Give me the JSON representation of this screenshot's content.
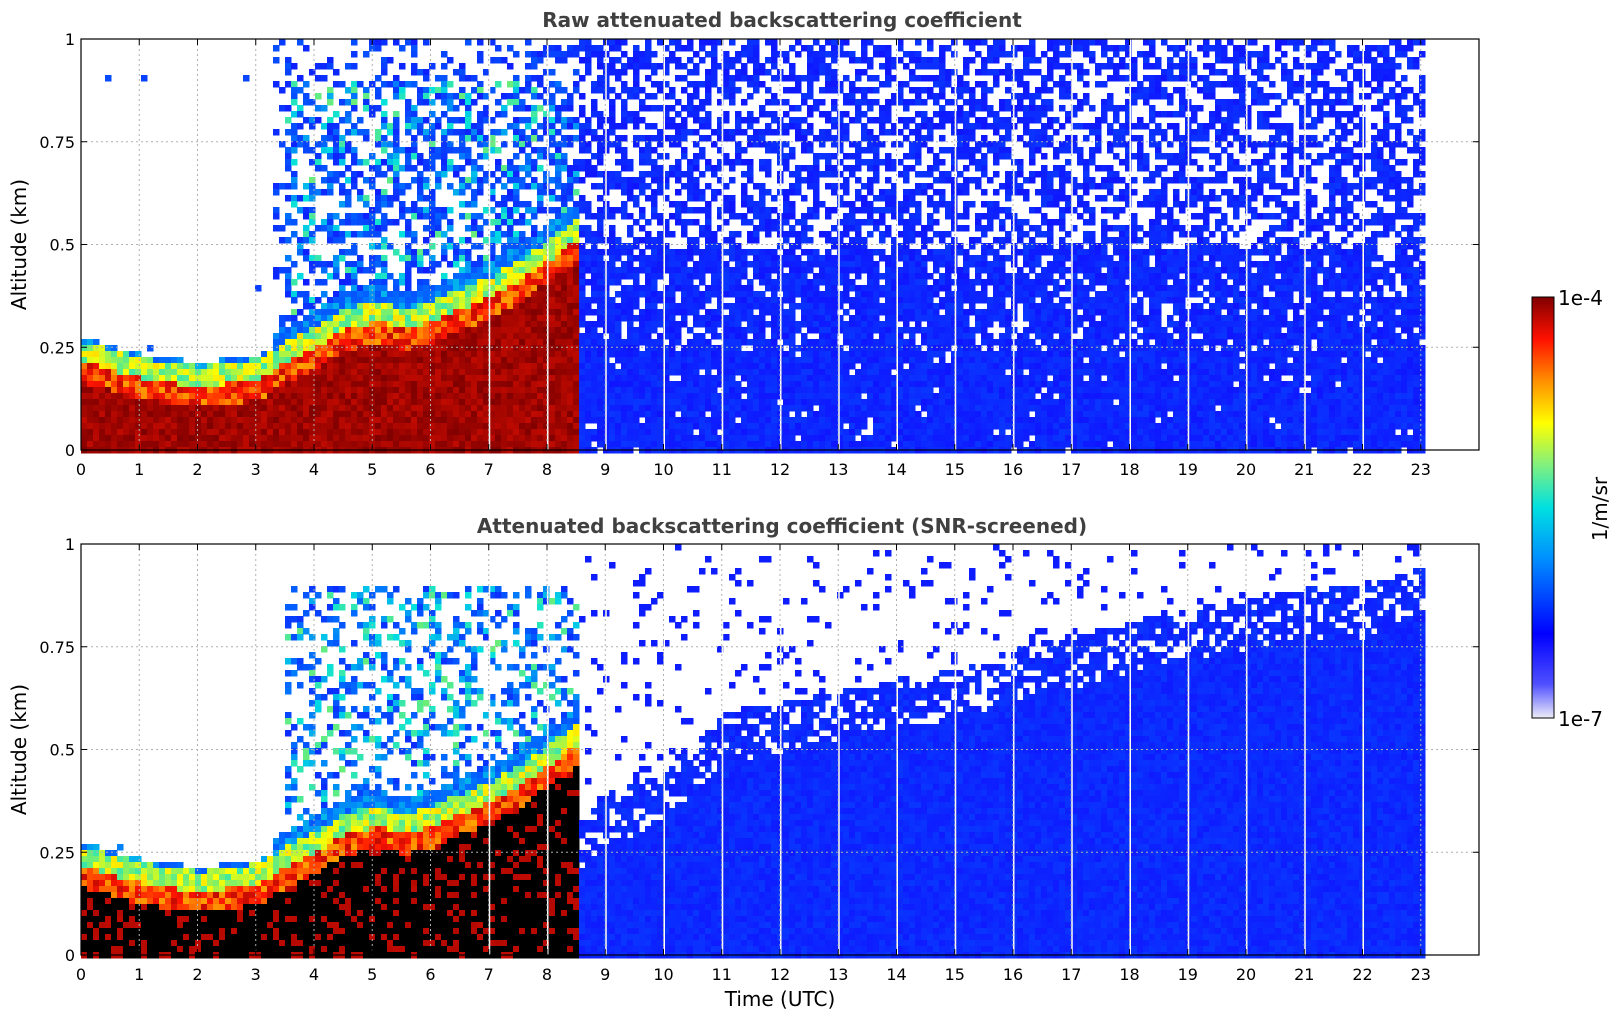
{
  "chart_data": [
    {
      "type": "heatmap",
      "title": "Raw attenuated backscattering coefficient",
      "xlabel": "",
      "ylabel": "Altitude (km)",
      "xlim": [
        0,
        24
      ],
      "ylim": [
        0,
        1
      ],
      "xticks": [
        "0",
        "1",
        "2",
        "3",
        "4",
        "5",
        "6",
        "7",
        "8",
        "9",
        "10",
        "11",
        "12",
        "13",
        "14",
        "15",
        "16",
        "17",
        "18",
        "19",
        "20",
        "21",
        "22",
        "23"
      ],
      "yticks": [
        "0",
        "0.25",
        "0.5",
        "0.75",
        "1"
      ],
      "grid": true,
      "data_end_hour": 23,
      "layer_top_km": [
        [
          0,
          0.22
        ],
        [
          0.5,
          0.2
        ],
        [
          1,
          0.18
        ],
        [
          2,
          0.16
        ],
        [
          3,
          0.18
        ],
        [
          3.5,
          0.22
        ],
        [
          4,
          0.26
        ],
        [
          4.5,
          0.3
        ],
        [
          5,
          0.32
        ],
        [
          5.5,
          0.3
        ],
        [
          6,
          0.32
        ],
        [
          6.5,
          0.35
        ],
        [
          7,
          0.38
        ],
        [
          7.5,
          0.42
        ],
        [
          8,
          0.47
        ],
        [
          8.5,
          0.52
        ]
      ]
    },
    {
      "type": "heatmap",
      "title": "Attenuated backscattering coefficient (SNR-screened)",
      "xlabel": "Time (UTC)",
      "ylabel": "Altitude (km)",
      "xlim": [
        0,
        24
      ],
      "ylim": [
        0,
        1
      ],
      "xticks": [
        "0",
        "1",
        "2",
        "3",
        "4",
        "5",
        "6",
        "7",
        "8",
        "9",
        "10",
        "11",
        "12",
        "13",
        "14",
        "15",
        "16",
        "17",
        "18",
        "19",
        "20",
        "21",
        "22",
        "23"
      ],
      "yticks": [
        "0",
        "0.25",
        "0.5",
        "0.75",
        "1"
      ],
      "grid": true,
      "data_end_hour": 23,
      "screened_top_km": [
        [
          8.5,
          0.32
        ],
        [
          9,
          0.4
        ],
        [
          10,
          0.45
        ],
        [
          11,
          0.6
        ],
        [
          12,
          0.62
        ],
        [
          13,
          0.65
        ],
        [
          14,
          0.68
        ],
        [
          15,
          0.7
        ],
        [
          16,
          0.75
        ],
        [
          17,
          0.78
        ],
        [
          18,
          0.82
        ],
        [
          19,
          0.85
        ],
        [
          20,
          0.87
        ],
        [
          21,
          0.9
        ],
        [
          22,
          0.9
        ],
        [
          23,
          0.95
        ]
      ]
    }
  ],
  "colorbar": {
    "label": "1/m/sr",
    "max_label": "1e-4",
    "min_label": "1e-7",
    "colors": [
      "#e8e8f8",
      "#1010ff",
      "#00a0ff",
      "#00e0e0",
      "#a0f060",
      "#ffff00",
      "#ff8000",
      "#ff0000",
      "#800000"
    ]
  }
}
